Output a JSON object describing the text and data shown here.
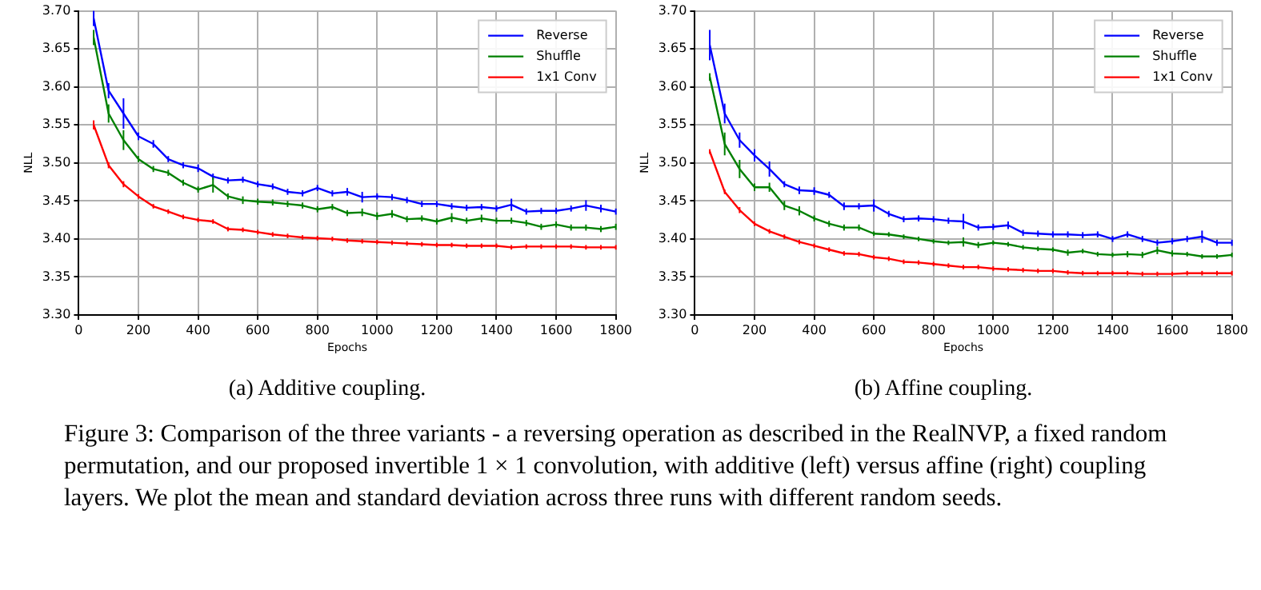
{
  "chart_data": [
    {
      "type": "line",
      "xlabel": "Epochs",
      "ylabel": "NLL",
      "annotations": [
        "(a) Additive coupling.",
        "Figure 3: Comparison of the three variants - a reversing operation as described in the RealNVP, a fixed random permutation, and our proposed invertible 1 × 1 convolution, with additive (left) versus affine (right) coupling layers. We plot the mean and standard deviation across three runs with different random seeds."
      ],
      "x": [
        50,
        100,
        150,
        200,
        250,
        300,
        350,
        400,
        450,
        500,
        550,
        600,
        650,
        700,
        750,
        800,
        850,
        900,
        950,
        1000,
        1050,
        1100,
        1150,
        1200,
        1250,
        1300,
        1350,
        1400,
        1450,
        1500,
        1550,
        1600,
        1650,
        1700,
        1750,
        1800
      ],
      "xlim": [
        0,
        1800
      ],
      "xticks": [
        0,
        200,
        400,
        600,
        800,
        1000,
        1200,
        1400,
        1600,
        1800
      ],
      "ylim": [
        3.3,
        3.7
      ],
      "yticks": [
        {
          "value": 3.3,
          "label": "3.30"
        },
        {
          "value": 3.35,
          "label": "3.35"
        },
        {
          "value": 3.4,
          "label": "3.40"
        },
        {
          "value": 3.45,
          "label": "3.45"
        },
        {
          "value": 3.5,
          "label": "3.50"
        },
        {
          "value": 3.55,
          "label": "3.55"
        },
        {
          "value": 3.6,
          "label": "3.60"
        },
        {
          "value": 3.65,
          "label": "3.65"
        },
        {
          "value": 3.7,
          "label": "3.70"
        }
      ],
      "grid": true,
      "legend": "top right",
      "line_style": "solid",
      "series": [
        {
          "name": "Reverse",
          "color": "#0000ff",
          "values": [
            3.69,
            3.595,
            3.565,
            3.535,
            3.525,
            3.505,
            3.497,
            3.493,
            3.482,
            3.477,
            3.478,
            3.472,
            3.469,
            3.462,
            3.46,
            3.467,
            3.46,
            3.462,
            3.455,
            3.456,
            3.455,
            3.451,
            3.446,
            3.446,
            3.443,
            3.441,
            3.442,
            3.44,
            3.445,
            3.436,
            3.437,
            3.437,
            3.44,
            3.444,
            3.44,
            3.436
          ],
          "errors": [
            0.01,
            0.01,
            0.02,
            0.005,
            0.005,
            0.004,
            0.004,
            0.005,
            0.004,
            0.004,
            0.004,
            0.004,
            0.004,
            0.004,
            0.004,
            0.004,
            0.004,
            0.005,
            0.007,
            0.004,
            0.004,
            0.004,
            0.004,
            0.004,
            0.004,
            0.004,
            0.004,
            0.004,
            0.008,
            0.004,
            0.004,
            0.004,
            0.004,
            0.007,
            0.005,
            0.004
          ]
        },
        {
          "name": "Shuffle",
          "color": "#008000",
          "values": [
            3.665,
            3.565,
            3.53,
            3.505,
            3.492,
            3.487,
            3.474,
            3.465,
            3.471,
            3.456,
            3.451,
            3.449,
            3.448,
            3.446,
            3.444,
            3.439,
            3.442,
            3.434,
            3.435,
            3.43,
            3.433,
            3.426,
            3.427,
            3.423,
            3.428,
            3.424,
            3.427,
            3.424,
            3.424,
            3.421,
            3.416,
            3.419,
            3.415,
            3.415,
            3.413,
            3.416
          ],
          "errors": [
            0.01,
            0.012,
            0.013,
            0.004,
            0.004,
            0.004,
            0.004,
            0.004,
            0.01,
            0.004,
            0.005,
            0.004,
            0.004,
            0.004,
            0.004,
            0.004,
            0.004,
            0.004,
            0.005,
            0.005,
            0.005,
            0.004,
            0.004,
            0.004,
            0.006,
            0.004,
            0.005,
            0.004,
            0.004,
            0.004,
            0.004,
            0.004,
            0.004,
            0.004,
            0.004,
            0.004
          ]
        },
        {
          "name": "1x1 Conv",
          "color": "#ff0000",
          "values": [
            3.55,
            3.497,
            3.472,
            3.456,
            3.443,
            3.436,
            3.429,
            3.425,
            3.423,
            3.413,
            3.412,
            3.409,
            3.406,
            3.404,
            3.402,
            3.401,
            3.4,
            3.398,
            3.397,
            3.396,
            3.395,
            3.394,
            3.393,
            3.392,
            3.392,
            3.391,
            3.391,
            3.391,
            3.389,
            3.39,
            3.39,
            3.39,
            3.39,
            3.389,
            3.389,
            3.389
          ],
          "errors": [
            0.006,
            0.004,
            0.004,
            0.003,
            0.003,
            0.003,
            0.003,
            0.003,
            0.003,
            0.003,
            0.003,
            0.003,
            0.003,
            0.003,
            0.003,
            0.003,
            0.003,
            0.003,
            0.003,
            0.003,
            0.003,
            0.003,
            0.003,
            0.003,
            0.003,
            0.003,
            0.003,
            0.003,
            0.003,
            0.003,
            0.003,
            0.003,
            0.003,
            0.003,
            0.003,
            0.003
          ]
        }
      ]
    },
    {
      "type": "line",
      "xlabel": "Epochs",
      "ylabel": "NLL",
      "annotations": [
        "(b) Affine coupling."
      ],
      "x": [
        50,
        100,
        150,
        200,
        250,
        300,
        350,
        400,
        450,
        500,
        550,
        600,
        650,
        700,
        750,
        800,
        850,
        900,
        950,
        1000,
        1050,
        1100,
        1150,
        1200,
        1250,
        1300,
        1350,
        1400,
        1450,
        1500,
        1550,
        1600,
        1650,
        1700,
        1750,
        1800
      ],
      "xlim": [
        0,
        1800
      ],
      "xticks": [
        0,
        200,
        400,
        600,
        800,
        1000,
        1200,
        1400,
        1600,
        1800
      ],
      "ylim": [
        3.3,
        3.7
      ],
      "yticks": [
        {
          "value": 3.3,
          "label": "3.30"
        },
        {
          "value": 3.35,
          "label": "3.35"
        },
        {
          "value": 3.4,
          "label": "3.40"
        },
        {
          "value": 3.45,
          "label": "3.45"
        },
        {
          "value": 3.5,
          "label": "3.50"
        },
        {
          "value": 3.55,
          "label": "3.55"
        },
        {
          "value": 3.6,
          "label": "3.60"
        },
        {
          "value": 3.65,
          "label": "3.65"
        },
        {
          "value": 3.7,
          "label": "3.70"
        }
      ],
      "grid": true,
      "legend": "top right",
      "line_style": "solid",
      "series": [
        {
          "name": "Reverse",
          "color": "#0000ff",
          "values": [
            3.655,
            3.565,
            3.53,
            3.51,
            3.492,
            3.472,
            3.464,
            3.463,
            3.458,
            3.443,
            3.443,
            3.444,
            3.433,
            3.426,
            3.427,
            3.426,
            3.424,
            3.423,
            3.415,
            3.416,
            3.418,
            3.408,
            3.407,
            3.406,
            3.406,
            3.405,
            3.406,
            3.4,
            3.406,
            3.4,
            3.395,
            3.397,
            3.4,
            3.403,
            3.395,
            3.395
          ],
          "errors": [
            0.02,
            0.013,
            0.01,
            0.008,
            0.01,
            0.004,
            0.005,
            0.005,
            0.004,
            0.005,
            0.004,
            0.008,
            0.004,
            0.004,
            0.004,
            0.004,
            0.004,
            0.01,
            0.004,
            0.004,
            0.005,
            0.004,
            0.004,
            0.004,
            0.004,
            0.004,
            0.004,
            0.004,
            0.004,
            0.004,
            0.004,
            0.004,
            0.004,
            0.008,
            0.004,
            0.004
          ]
        },
        {
          "name": "Shuffle",
          "color": "#008000",
          "values": [
            3.613,
            3.525,
            3.492,
            3.468,
            3.468,
            3.444,
            3.437,
            3.427,
            3.42,
            3.415,
            3.415,
            3.407,
            3.406,
            3.403,
            3.4,
            3.397,
            3.395,
            3.396,
            3.392,
            3.395,
            3.393,
            3.389,
            3.387,
            3.386,
            3.382,
            3.384,
            3.38,
            3.379,
            3.38,
            3.379,
            3.385,
            3.381,
            3.38,
            3.377,
            3.377,
            3.379
          ],
          "errors": [
            0.005,
            0.015,
            0.012,
            0.005,
            0.006,
            0.006,
            0.006,
            0.004,
            0.004,
            0.004,
            0.004,
            0.003,
            0.003,
            0.003,
            0.003,
            0.003,
            0.003,
            0.006,
            0.004,
            0.003,
            0.003,
            0.003,
            0.003,
            0.003,
            0.004,
            0.003,
            0.003,
            0.003,
            0.004,
            0.004,
            0.005,
            0.004,
            0.003,
            0.003,
            0.003,
            0.003
          ]
        },
        {
          "name": "1x1 Conv",
          "color": "#ff0000",
          "values": [
            3.515,
            3.462,
            3.438,
            3.42,
            3.41,
            3.403,
            3.396,
            3.391,
            3.386,
            3.381,
            3.38,
            3.376,
            3.374,
            3.37,
            3.369,
            3.367,
            3.365,
            3.363,
            3.363,
            3.361,
            3.36,
            3.359,
            3.358,
            3.358,
            3.356,
            3.355,
            3.355,
            3.355,
            3.355,
            3.354,
            3.354,
            3.354,
            3.355,
            3.355,
            3.355,
            3.355
          ],
          "errors": [
            0.003,
            0.003,
            0.004,
            0.003,
            0.003,
            0.003,
            0.003,
            0.003,
            0.003,
            0.003,
            0.003,
            0.003,
            0.003,
            0.003,
            0.003,
            0.003,
            0.003,
            0.003,
            0.003,
            0.003,
            0.003,
            0.003,
            0.003,
            0.003,
            0.003,
            0.003,
            0.003,
            0.003,
            0.003,
            0.003,
            0.003,
            0.003,
            0.003,
            0.003,
            0.003,
            0.003
          ]
        }
      ]
    }
  ]
}
